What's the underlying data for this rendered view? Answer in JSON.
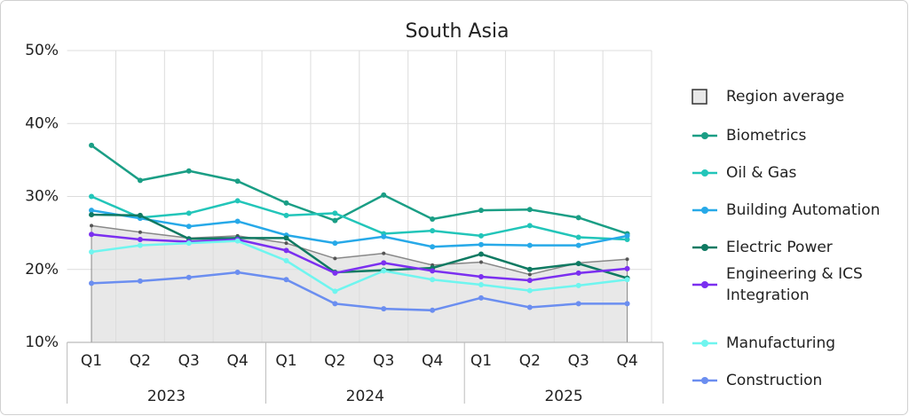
{
  "chart_data": {
    "type": "line",
    "title": "South Asia",
    "categories": [
      "Q1",
      "Q2",
      "Q3",
      "Q4",
      "Q1",
      "Q2",
      "Q3",
      "Q4",
      "Q1",
      "Q2",
      "Q3",
      "Q4"
    ],
    "category_groups": [
      "2023",
      "2024",
      "2025"
    ],
    "ylim": [
      10,
      50
    ],
    "yticks": [
      {
        "value": 10,
        "label": "10%"
      },
      {
        "value": 20,
        "label": "20%"
      },
      {
        "value": 30,
        "label": "30%"
      },
      {
        "value": 40,
        "label": "40%"
      },
      {
        "value": 50,
        "label": "50%"
      }
    ],
    "grid": true,
    "legend": "right",
    "area": {
      "name": "Region average",
      "color": "#888888",
      "fill": "#e8e8e8",
      "values": [
        26,
        25.1,
        24.3,
        24.6,
        23.6,
        21.5,
        22.2,
        20.6,
        21,
        19.3,
        20.9,
        21.4
      ]
    },
    "series": [
      {
        "name": "Biometrics",
        "color": "#1a9e85",
        "values": [
          37,
          32.2,
          33.5,
          32.1,
          29.1,
          26.7,
          30.2,
          26.9,
          28.1,
          28.2,
          27.1,
          24.9
        ]
      },
      {
        "name": "Oil & Gas",
        "color": "#22c5b9",
        "values": [
          30,
          27.1,
          27.7,
          29.4,
          27.4,
          27.7,
          24.9,
          25.3,
          24.6,
          26,
          24.4,
          24.1
        ]
      },
      {
        "name": "Building Automation",
        "color": "#27a9e8",
        "values": [
          28.1,
          27,
          25.9,
          26.6,
          24.7,
          23.6,
          24.5,
          23.1,
          23.4,
          23.3,
          23.3,
          24.6
        ]
      },
      {
        "name": "Electric Power",
        "color": "#0f7a62",
        "values": [
          27.5,
          27.4,
          24.2,
          24.3,
          24.3,
          19.6,
          19.9,
          20.2,
          22.1,
          20,
          20.8,
          18.8
        ]
      },
      {
        "name": "Engineering & ICS Integration",
        "color": "#7b2ff0",
        "values": [
          24.8,
          24.1,
          23.8,
          24.1,
          22.6,
          19.5,
          20.9,
          19.8,
          19,
          18.5,
          19.5,
          20.1
        ]
      },
      {
        "name": "Manufacturing",
        "color": "#6ff5ef",
        "values": [
          22.4,
          23.3,
          23.6,
          23.9,
          21.2,
          17,
          19.8,
          18.6,
          17.9,
          17.1,
          17.8,
          18.6
        ]
      },
      {
        "name": "Construction",
        "color": "#6b8ef0",
        "values": [
          18.1,
          18.4,
          18.9,
          19.6,
          18.6,
          15.3,
          14.6,
          14.4,
          16.1,
          14.8,
          15.3,
          15.3
        ]
      }
    ]
  }
}
